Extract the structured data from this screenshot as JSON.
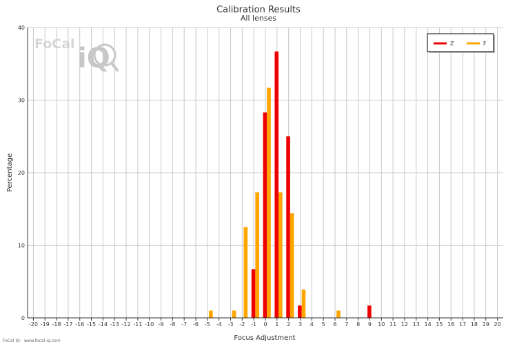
{
  "chart_data": {
    "type": "bar",
    "title": "Calibration Results",
    "subtitle": "All lenses",
    "xlabel": "Focus Adjustment",
    "ylabel": "Percentage",
    "ylim": [
      0,
      40
    ],
    "yticks": [
      0,
      10,
      20,
      30,
      40
    ],
    "x": [
      -20,
      -19,
      -18,
      -17,
      -16,
      -15,
      -14,
      -13,
      -12,
      -11,
      -10,
      -9,
      -8,
      -7,
      -6,
      -5,
      -4,
      -3,
      -2,
      -1,
      0,
      1,
      2,
      3,
      4,
      5,
      6,
      7,
      8,
      9,
      10,
      11,
      12,
      13,
      14,
      15,
      16,
      17,
      18,
      19,
      20
    ],
    "grid": true,
    "legend_position": "top-right",
    "series": [
      {
        "name": "Z",
        "color": "#ee0000",
        "points": [
          {
            "x": -1,
            "y": 6.7
          },
          {
            "x": 0,
            "y": 28.3
          },
          {
            "x": 1,
            "y": 36.7
          },
          {
            "x": 2,
            "y": 25.0
          },
          {
            "x": 3,
            "y": 1.7
          },
          {
            "x": 9,
            "y": 1.7
          }
        ]
      },
      {
        "name": "F",
        "color": "#ffa500",
        "points": [
          {
            "x": -5,
            "y": 1.0
          },
          {
            "x": -3,
            "y": 1.0
          },
          {
            "x": -2,
            "y": 12.5
          },
          {
            "x": -1,
            "y": 17.3
          },
          {
            "x": 0,
            "y": 31.7
          },
          {
            "x": 1,
            "y": 17.3
          },
          {
            "x": 2,
            "y": 14.4
          },
          {
            "x": 3,
            "y": 3.9
          },
          {
            "x": 6,
            "y": 1.0
          }
        ]
      }
    ]
  },
  "logo": {
    "text": "FoCal",
    "mark": "iQ"
  },
  "credit": "FoCal IQ - www.focal-iq.com"
}
